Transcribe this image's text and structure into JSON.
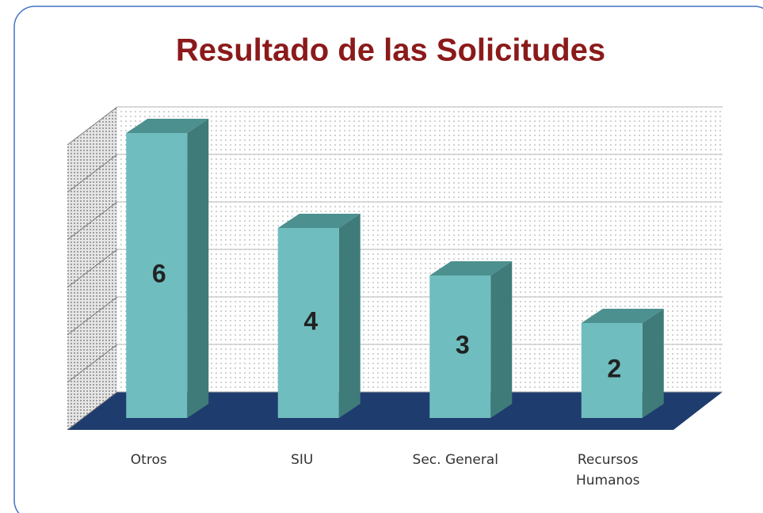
{
  "chart_data": {
    "type": "bar3d",
    "title": "Resultado de las Solicitudes",
    "categories": [
      "Otros",
      "SIU",
      "Sec. General",
      "Recursos Humanos"
    ],
    "values": [
      6,
      4,
      3,
      2
    ],
    "color": "#6fbdbf",
    "ylim": [
      0,
      6
    ],
    "yticks": [
      0,
      1,
      2,
      3,
      4,
      5,
      6
    ],
    "grid": true
  }
}
